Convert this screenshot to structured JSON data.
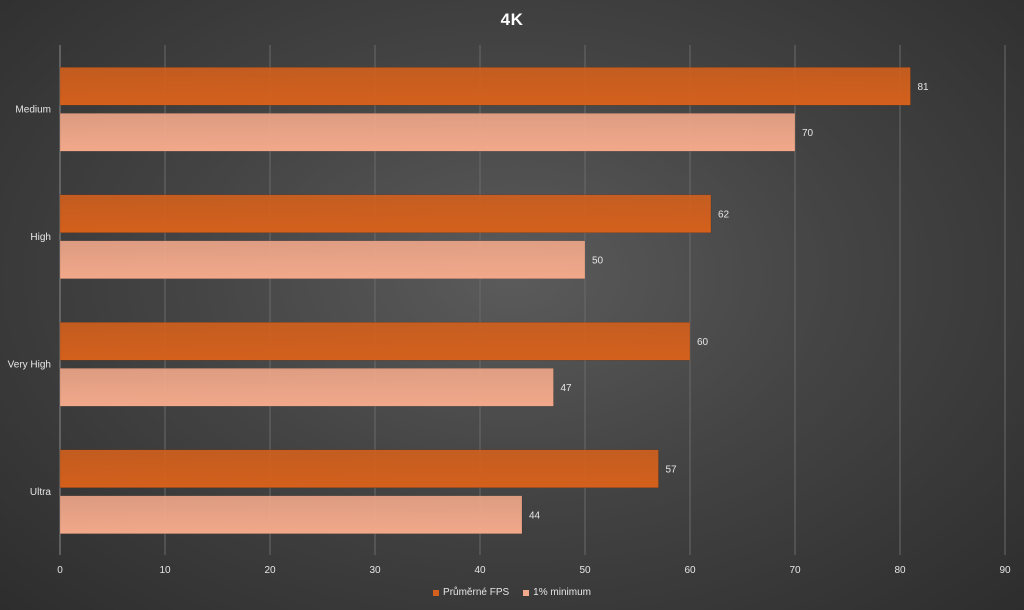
{
  "chart_data": {
    "type": "bar",
    "orientation": "horizontal",
    "title": "4K",
    "categories": [
      "Medium",
      "High",
      "Very High",
      "Ultra"
    ],
    "series": [
      {
        "name": "Průměrné FPS",
        "values": [
          81,
          62,
          60,
          57
        ],
        "color": "#d4601c"
      },
      {
        "name": "1% minimum",
        "values": [
          70,
          50,
          47,
          44
        ],
        "color": "#f2a88a"
      }
    ],
    "xlim": [
      0,
      90
    ],
    "xticks": [
      0,
      10,
      20,
      30,
      40,
      50,
      60,
      70,
      80,
      90
    ],
    "grid": true,
    "legend_position": "bottom"
  }
}
